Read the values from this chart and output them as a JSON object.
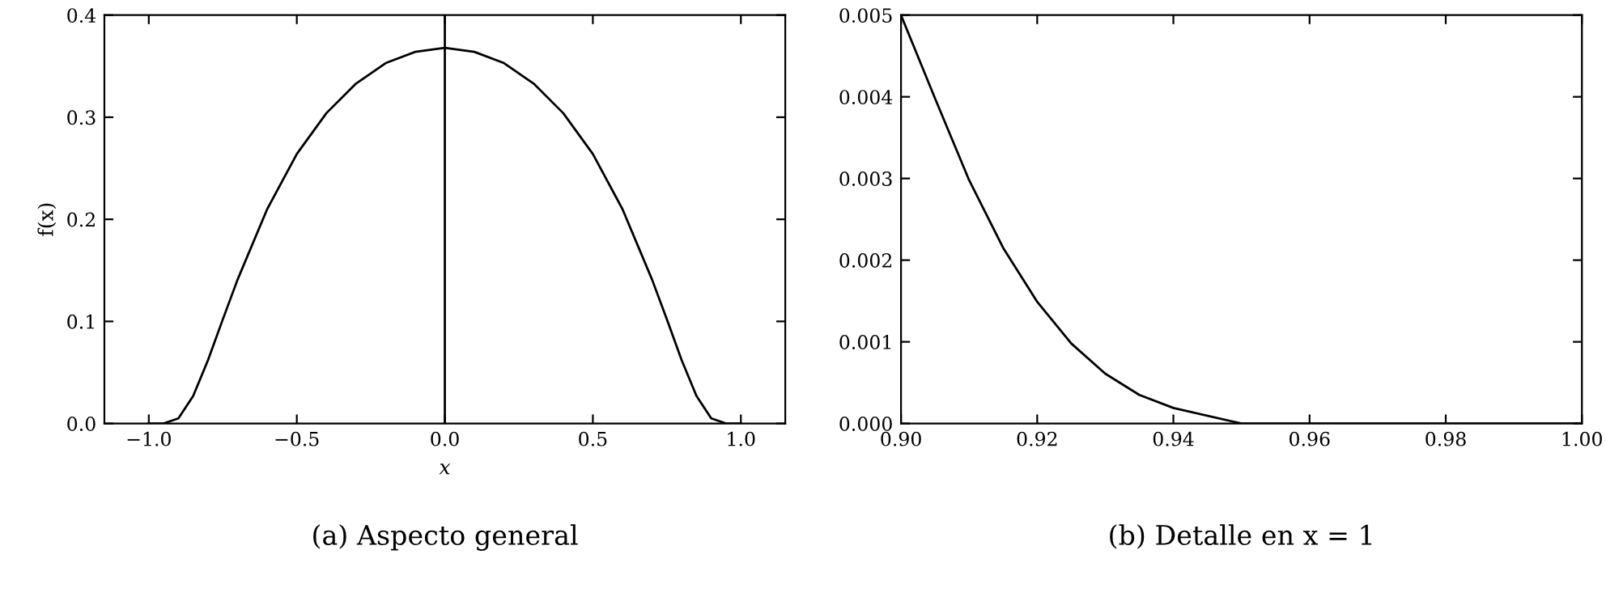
{
  "chart_data": [
    {
      "type": "line",
      "title": "(a) Aspecto general",
      "xlabel": "x",
      "ylabel": "f(x)",
      "x": [
        -1.0,
        -0.95,
        -0.9,
        -0.85,
        -0.8,
        -0.75,
        -0.7,
        -0.6,
        -0.5,
        -0.4,
        -0.3,
        -0.2,
        -0.1,
        0.0,
        0.1,
        0.2,
        0.3,
        0.4,
        0.5,
        0.6,
        0.7,
        0.75,
        0.8,
        0.85,
        0.9,
        0.95,
        1.0
      ],
      "series": [
        {
          "color": "#000000",
          "values": [
            0.0,
            0.0,
            0.005,
            0.027,
            0.062,
            0.102,
            0.141,
            0.21,
            0.264,
            0.304,
            0.333,
            0.353,
            0.364,
            0.368,
            0.364,
            0.353,
            0.333,
            0.304,
            0.264,
            0.21,
            0.141,
            0.102,
            0.062,
            0.027,
            0.005,
            0.0,
            0.0
          ]
        }
      ],
      "xlim": [
        -1.15,
        1.15
      ],
      "ylim": [
        0,
        0.4
      ],
      "xticks": [
        {
          "value": -1.0,
          "label": "−1.0"
        },
        {
          "value": -0.5,
          "label": "−0.5"
        },
        {
          "value": 0.0,
          "label": "0.0"
        },
        0.5,
        {
          "value": 1.0,
          "label": "1.0"
        }
      ],
      "yticks": [
        {
          "value": 0.0,
          "label": "0.0"
        },
        0.1,
        0.2,
        0.3,
        0.4
      ],
      "ref_lines": [
        {
          "axis": "x",
          "value": 0,
          "color": "#000000"
        }
      ],
      "line_style": "solid"
    },
    {
      "type": "line",
      "title": "(b) Detalle en x = 1",
      "x": [
        0.9,
        0.905,
        0.91,
        0.915,
        0.92,
        0.925,
        0.93,
        0.935,
        0.94,
        0.95,
        0.96,
        0.97,
        0.98,
        0.99,
        1.0
      ],
      "series": [
        {
          "color": "#000000",
          "values": [
            0.005,
            0.00398,
            0.00298,
            0.00215,
            0.00149,
            0.00098,
            0.00061,
            0.00035,
            0.00019,
            0.0,
            0.0,
            0.0,
            0.0,
            0.0,
            0.0
          ]
        }
      ],
      "xlim": [
        0.9,
        1.0
      ],
      "ylim": [
        0,
        0.005
      ],
      "xticks": [
        {
          "value": 0.9,
          "label": "0.90"
        },
        {
          "value": 0.92,
          "label": "0.92"
        },
        {
          "value": 0.94,
          "label": "0.94"
        },
        {
          "value": 0.96,
          "label": "0.96"
        },
        {
          "value": 0.98,
          "label": "0.98"
        },
        {
          "value": 1.0,
          "label": "1.00"
        }
      ],
      "yticks": [
        {
          "value": 0.0,
          "label": "0.000"
        },
        0.001,
        0.002,
        0.003,
        0.004,
        0.005
      ],
      "line_style": "solid"
    }
  ]
}
